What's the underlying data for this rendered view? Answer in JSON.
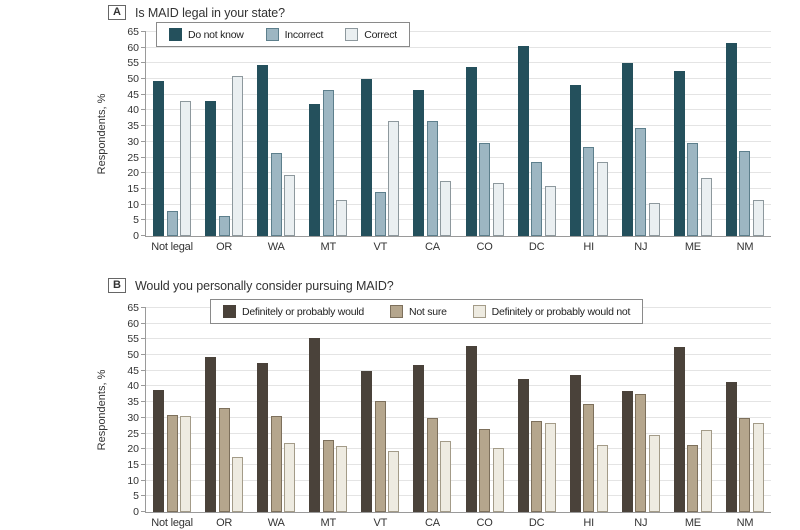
{
  "panels": [
    {
      "label": "A",
      "title": "Is MAID legal in your state?",
      "ylabel": "Respondents, %",
      "chart_data": {
        "type": "bar",
        "categories": [
          "Not legal",
          "OR",
          "WA",
          "MT",
          "VT",
          "CA",
          "CO",
          "DC",
          "HI",
          "NJ",
          "ME",
          "NM"
        ],
        "series": [
          {
            "name": "Do not know",
            "color": "#24505c",
            "border": "#24505c",
            "values": [
              49.5,
              43,
              54.5,
              42,
              50,
              46.5,
              54,
              60.5,
              48,
              55,
              52.5,
              61.5
            ]
          },
          {
            "name": "Incorrect",
            "color": "#9db6c2",
            "border": "#5d7f8c",
            "values": [
              8,
              6.5,
              26.5,
              46.5,
              14,
              36.5,
              29.5,
              23.5,
              28.5,
              34.5,
              29.5,
              27
            ]
          },
          {
            "name": "Correct",
            "color": "#eaeff1",
            "border": "#8d989d",
            "values": [
              43,
              51,
              19.5,
              11.5,
              36.5,
              17.5,
              17,
              16,
              23.5,
              10.5,
              18.5,
              11.5
            ]
          }
        ],
        "ylim": [
          0,
          65
        ],
        "ytick_step": 5,
        "grid": true,
        "legend_position": "top-left-inside"
      }
    },
    {
      "label": "B",
      "title": "Would you personally consider pursuing MAID?",
      "ylabel": "Respondents, %",
      "chart_data": {
        "type": "bar",
        "categories": [
          "Not legal",
          "OR",
          "WA",
          "MT",
          "VT",
          "CA",
          "CO",
          "DC",
          "HI",
          "NJ",
          "ME",
          "NM"
        ],
        "series": [
          {
            "name": "Definitely or probably would",
            "color": "#4a423a",
            "border": "#4a423a",
            "values": [
              39,
              49.5,
              47.5,
              55.5,
              45,
              47,
              53,
              42.5,
              43.5,
              38.5,
              52.5,
              41.5
            ]
          },
          {
            "name": "Not sure",
            "color": "#b5a68d",
            "border": "#7d705c",
            "values": [
              31,
              33,
              30.5,
              23,
              35.5,
              30,
              26.5,
              29,
              34.5,
              37.5,
              21.5,
              30
            ]
          },
          {
            "name": "Definitely or probably would not",
            "color": "#eeebe1",
            "border": "#a39b88",
            "values": [
              30.5,
              17.5,
              22,
              21,
              19.5,
              22.5,
              20.5,
              28.5,
              21.5,
              24.5,
              26,
              28.5
            ]
          }
        ],
        "ylim": [
          0,
          65
        ],
        "ytick_step": 5,
        "grid": true,
        "legend_position": "top-center-inside"
      }
    }
  ]
}
